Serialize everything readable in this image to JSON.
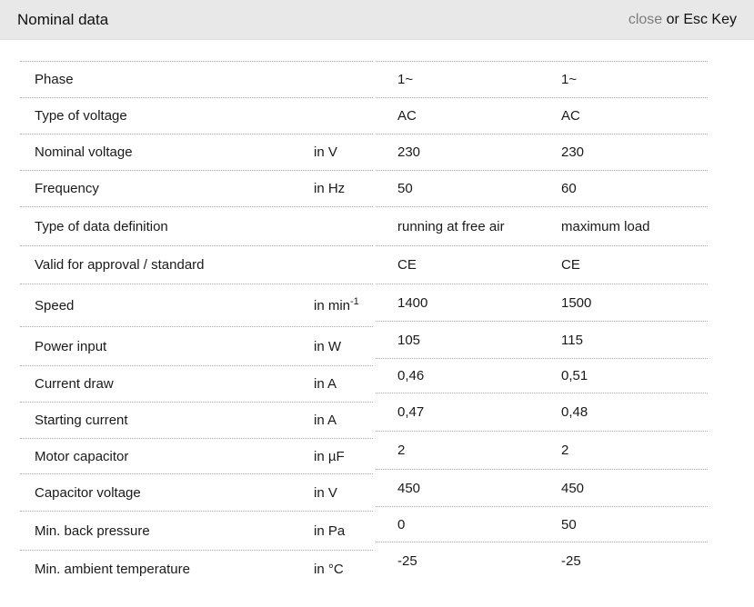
{
  "header": {
    "title": "Nominal data",
    "close_label": "close",
    "close_suffix": "or Esc Key"
  },
  "table": {
    "rows": [
      {
        "label": "Phase",
        "unit": "",
        "col1": "1~",
        "col2": "1~"
      },
      {
        "label": "Type of voltage",
        "unit": "",
        "col1": "AC",
        "col2": "AC"
      },
      {
        "label": "Nominal voltage",
        "unit": "in V",
        "col1": "230",
        "col2": "230"
      },
      {
        "label": "Frequency",
        "unit": "in Hz",
        "col1": "50",
        "col2": "60"
      },
      {
        "label": "Type of data definition",
        "unit": "",
        "col1": "running at free air",
        "col2": "maximum load"
      },
      {
        "label": "Valid for approval / standard",
        "unit": "",
        "col1": "CE",
        "col2": "CE"
      },
      {
        "label": "Speed",
        "unit": "in min^-1",
        "col1": "1400",
        "col2": "1500"
      },
      {
        "label": "Power input",
        "unit": "in W",
        "col1": "105",
        "col2": "115"
      },
      {
        "label": "Current draw",
        "unit": "in A",
        "col1": "0,46",
        "col2": "0,51"
      },
      {
        "label": "Starting current",
        "unit": "in A",
        "col1": "0,47",
        "col2": "0,48"
      },
      {
        "label": "Motor capacitor",
        "unit": "in µF",
        "col1": "2",
        "col2": "2"
      },
      {
        "label": "Capacitor voltage",
        "unit": "in V",
        "col1": "450",
        "col2": "450"
      },
      {
        "label": "Min. back pressure",
        "unit": "in Pa",
        "col1": "0",
        "col2": "50"
      },
      {
        "label": "Min. ambient temperature",
        "unit": "in °C",
        "col1": "-25",
        "col2": "-25"
      }
    ]
  },
  "colors": {
    "header_bg": "#e8e8e8",
    "close_link": "#7d7d7d",
    "divider": "#a9a9a9",
    "text": "#1a1a1a"
  }
}
